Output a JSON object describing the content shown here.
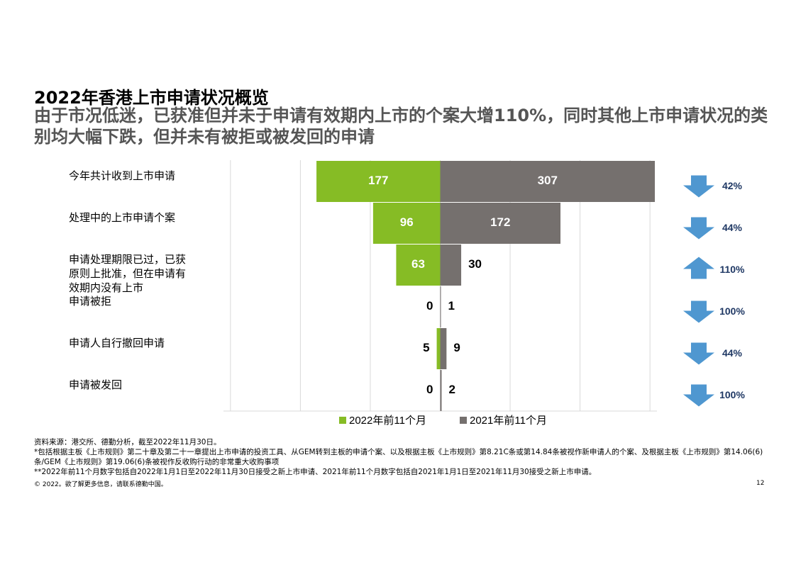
{
  "title": "2022年香港上市申请状况概览",
  "subtitle": "由于市况低迷，已获准但并未于申请有效期内上市的个案大增110%，同时其他上市申请状况的类别均大幅下跌，但并未有被拒或被发回的申请",
  "chart_data": {
    "type": "butterfly",
    "categories": [
      "今年共计收到上市申请",
      "处理中的上市申请个案",
      "申请处理期限已过，已获原则上批准，但在申请有效期内没有上市",
      "申请被拒",
      "申请人自行撤回申请",
      "申请被发回"
    ],
    "series": [
      {
        "name": "2022年前11个月",
        "color": "#86bc25",
        "side": "left",
        "values": [
          177,
          96,
          63,
          0,
          5,
          0
        ]
      },
      {
        "name": "2021年前11个月",
        "color": "#75706e",
        "side": "right",
        "values": [
          307,
          172,
          30,
          1,
          9,
          2
        ]
      }
    ],
    "changes": {
      "values": [
        42,
        44,
        110,
        100,
        44,
        100
      ],
      "value_labels": [
        "42%",
        "44%",
        "110%",
        "100%",
        "44%",
        "100%"
      ],
      "direction": [
        "down",
        "down",
        "up",
        "down",
        "down",
        "down"
      ],
      "color": "#4f97d0"
    },
    "xlim": [
      -310,
      310
    ],
    "xticks": [
      -300,
      -200,
      -100,
      0,
      100,
      200,
      300
    ],
    "grid": true,
    "legend": "bottom"
  },
  "footnotes": [
    "资料来源：港交所、德勤分析，截至2022年11月30日。",
    "*包括根据主板《上市规则》第二十章及第二十一章提出上市申请的投资工具、从GEM转到主板的申请个案、以及根据主板《上市规则》第8.21C条或第14.84条被视作新申请人的个案、及根据主板《上市规则》第14.06(6)条/GEM《上市规则》第19.06(6)条被视作反收购行动的非常重大收购事项",
    "**2022年前11个月数字包括自2022年1月1日至2022年11月30日接受之新上市申请、2021年前11个月数字包括自2021年1月1日至2021年11月30接受之新上市申请。"
  ],
  "copyright": "© 2022。欲了解更多信息，请联系德勤中国。",
  "page_number": "12"
}
